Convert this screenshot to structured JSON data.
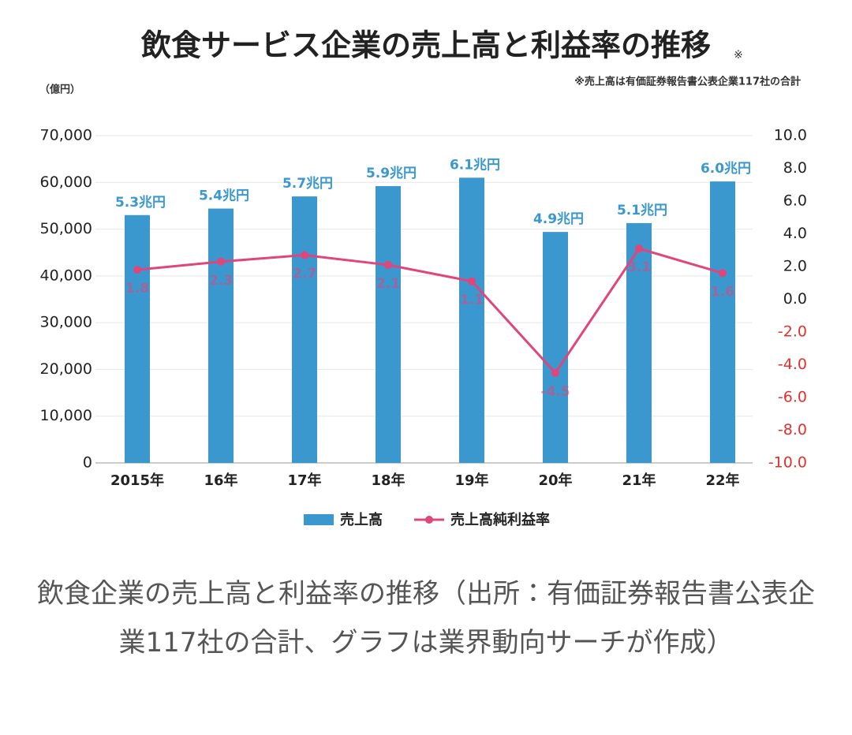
{
  "chart_data": {
    "type": "combo",
    "title": "飲食サービス企業の売上高と利益率の推移",
    "title_mark": "※",
    "note": "※売上高は有価証券報告書公表企業117社の合計",
    "y_label": "（億円）",
    "categories": [
      "2015年",
      "16年",
      "17年",
      "18年",
      "19年",
      "20年",
      "21年",
      "22年"
    ],
    "series": [
      {
        "name": "売上高",
        "type": "bar",
        "color": "#3a98cf",
        "values": [
          53000,
          54400,
          57000,
          59200,
          61000,
          49400,
          51300,
          60200
        ],
        "value_labels": [
          "5.3兆円",
          "5.4兆円",
          "5.7兆円",
          "5.9兆円",
          "6.1兆円",
          "4.9兆円",
          "5.1兆円",
          "6.0兆円"
        ]
      },
      {
        "name": "売上高純利益率",
        "type": "line",
        "axis": "y2",
        "color": "#e0457b",
        "values": [
          1.8,
          2.3,
          2.7,
          2.1,
          1.1,
          -4.5,
          3.1,
          1.6
        ]
      }
    ],
    "ylim": [
      0,
      70000
    ],
    "yticks": [
      0,
      {
        "value": 10000,
        "label": "10,000"
      },
      {
        "value": 20000,
        "label": "20,000"
      },
      {
        "value": 30000,
        "label": "30,000"
      },
      {
        "value": 40000,
        "label": "40,000"
      },
      {
        "value": 50000,
        "label": "50,000"
      },
      {
        "value": 60000,
        "label": "60,000"
      },
      {
        "value": 70000,
        "label": "70,000"
      }
    ],
    "y2lim": [
      -10,
      10
    ],
    "y2ticks": [
      {
        "value": -10,
        "label": "-10.0"
      },
      {
        "value": -8,
        "label": "-8.0"
      },
      {
        "value": -6,
        "label": "-6.0"
      },
      {
        "value": -4,
        "label": "-4.0"
      },
      {
        "value": -2,
        "label": "-2.0"
      },
      {
        "value": 0,
        "label": "0.0"
      },
      {
        "value": 2,
        "label": "2.0"
      },
      {
        "value": 4,
        "label": "4.0"
      },
      {
        "value": 6,
        "label": "6.0"
      },
      {
        "value": 8,
        "label": "8.0"
      },
      {
        "value": 10,
        "label": "10.0"
      }
    ],
    "grid": true,
    "legend": "bottom"
  },
  "caption": "飲食企業の売上高と利益率の推移（出所：有価証券報告書公表企業117社の合計、グラフは業界動向サーチが作成）"
}
